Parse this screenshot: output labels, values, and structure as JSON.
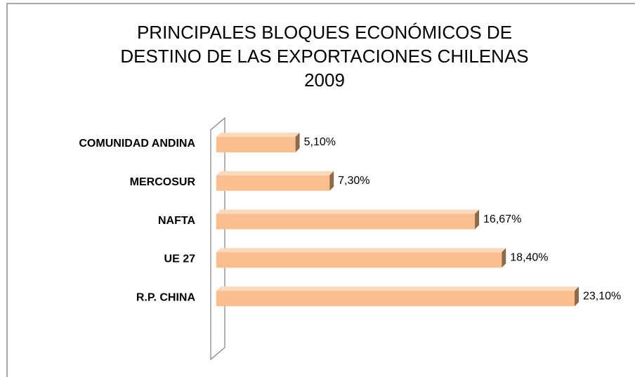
{
  "chart_data": {
    "type": "bar3d_horizontal",
    "title": [
      "PRINCIPALES BLOQUES ECONÓMICOS DE",
      "DESTINO DE LAS EXPORTACIONES CHILENAS",
      "2009"
    ],
    "categories": [
      "COMUNIDAD ANDINA",
      "MERCOSUR",
      "NAFTA",
      "UE 27",
      "R.P. CHINA"
    ],
    "values": [
      5.1,
      7.3,
      16.67,
      18.4,
      23.1
    ],
    "value_labels": [
      "5,10%",
      "7,30%",
      "16,67%",
      "18,40%",
      "23,10%"
    ],
    "color": "#fbbf8f"
  }
}
